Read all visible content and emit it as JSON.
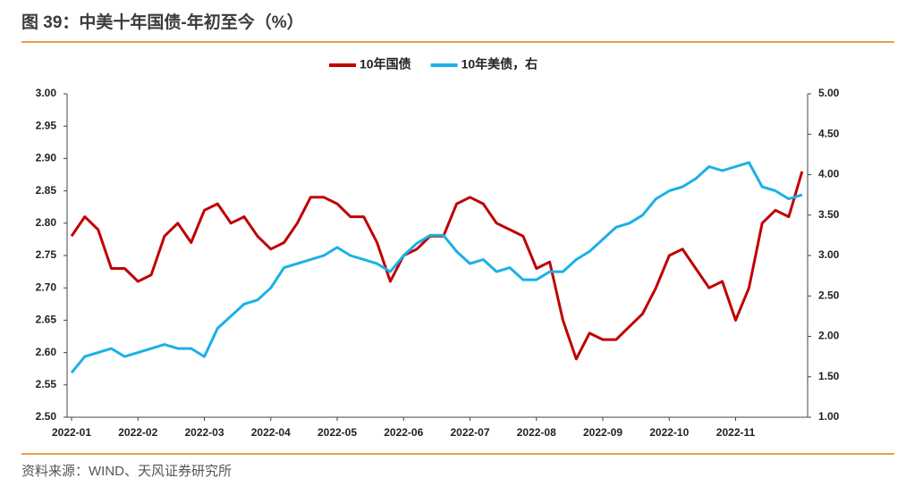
{
  "chart_data": {
    "type": "line",
    "title": "图 39：中美十年国债-年初至今（%）",
    "source": "资料来源：WIND、天风证券研究所",
    "categories": [
      "2022-01",
      null,
      null,
      null,
      null,
      "2022-02",
      null,
      null,
      null,
      null,
      "2022-03",
      null,
      null,
      null,
      null,
      "2022-04",
      null,
      null,
      null,
      null,
      "2022-05",
      null,
      null,
      null,
      null,
      "2022-06",
      null,
      null,
      null,
      null,
      "2022-07",
      null,
      null,
      null,
      null,
      "2022-08",
      null,
      null,
      null,
      null,
      "2022-09",
      null,
      null,
      null,
      null,
      "2022-10",
      null,
      null,
      null,
      null,
      "2022-11",
      null,
      null,
      null,
      null,
      null
    ],
    "series": [
      {
        "name": "10年国债",
        "color": "#c00000",
        "axis": "y",
        "values": [
          2.78,
          2.81,
          2.79,
          2.73,
          2.73,
          2.71,
          2.72,
          2.78,
          2.8,
          2.77,
          2.82,
          2.83,
          2.8,
          2.81,
          2.78,
          2.76,
          2.77,
          2.8,
          2.84,
          2.84,
          2.83,
          2.81,
          2.81,
          2.77,
          2.71,
          2.75,
          2.76,
          2.78,
          2.78,
          2.83,
          2.84,
          2.83,
          2.8,
          2.79,
          2.78,
          2.73,
          2.74,
          2.65,
          2.59,
          2.63,
          2.62,
          2.62,
          2.64,
          2.66,
          2.7,
          2.75,
          2.76,
          2.73,
          2.7,
          2.71,
          2.65,
          2.7,
          2.8,
          2.82,
          2.81,
          2.88
        ]
      },
      {
        "name": "10年美债，右",
        "color": "#1ab0e8",
        "axis": "y2",
        "values": [
          1.55,
          1.75,
          1.8,
          1.85,
          1.75,
          1.8,
          1.85,
          1.9,
          1.85,
          1.85,
          1.75,
          2.1,
          2.25,
          2.4,
          2.45,
          2.6,
          2.85,
          2.9,
          2.95,
          3.0,
          3.1,
          3.0,
          2.95,
          2.9,
          2.8,
          3.0,
          3.15,
          3.25,
          3.25,
          3.05,
          2.9,
          2.95,
          2.8,
          2.85,
          2.7,
          2.7,
          2.8,
          2.8,
          2.95,
          3.05,
          3.2,
          3.35,
          3.4,
          3.5,
          3.7,
          3.8,
          3.85,
          3.95,
          4.1,
          4.05,
          4.1,
          4.15,
          3.85,
          3.8,
          3.7,
          3.75
        ]
      }
    ],
    "ylim": [
      2.5,
      3.0
    ],
    "yticks": [
      {
        "value": 2.5,
        "label": "2.50"
      },
      {
        "value": 2.55,
        "label": "2.55"
      },
      {
        "value": 2.6,
        "label": "2.60"
      },
      {
        "value": 2.65,
        "label": "2.65"
      },
      {
        "value": 2.7,
        "label": "2.70"
      },
      {
        "value": 2.75,
        "label": "2.75"
      },
      {
        "value": 2.8,
        "label": "2.80"
      },
      {
        "value": 2.85,
        "label": "2.85"
      },
      {
        "value": 2.9,
        "label": "2.90"
      },
      {
        "value": 2.95,
        "label": "2.95"
      },
      {
        "value": 3.0,
        "label": "3.00"
      }
    ],
    "y2lim": [
      1.0,
      5.0
    ],
    "y2ticks": [
      {
        "value": 1.0,
        "label": "1.00"
      },
      {
        "value": 1.5,
        "label": "1.50"
      },
      {
        "value": 2.0,
        "label": "2.00"
      },
      {
        "value": 2.5,
        "label": "2.50"
      },
      {
        "value": 3.0,
        "label": "3.00"
      },
      {
        "value": 3.5,
        "label": "3.50"
      },
      {
        "value": 4.0,
        "label": "4.00"
      },
      {
        "value": 4.5,
        "label": "4.50"
      },
      {
        "value": 5.0,
        "label": "5.00"
      }
    ],
    "grid": false,
    "legend": "top"
  }
}
